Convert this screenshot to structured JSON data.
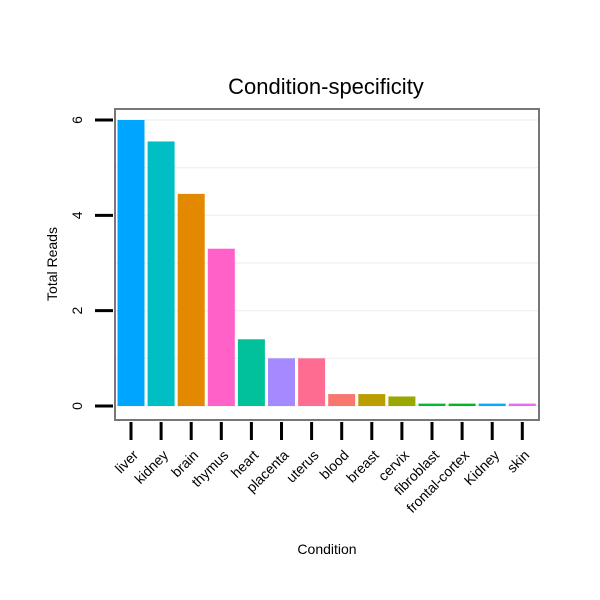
{
  "chart_data": {
    "type": "bar",
    "title": "Condition-specificity",
    "xlabel": "Condition",
    "ylabel": "Total Reads",
    "ylim": [
      0,
      6.2
    ],
    "yticks": [
      0,
      2,
      4,
      6
    ],
    "grid": true,
    "categories": [
      "liver",
      "kidney",
      "brain",
      "thymus",
      "heart",
      "placenta",
      "uterus",
      "blood",
      "breast",
      "cervix",
      "fibroblast",
      "frontal-cortex",
      "Kidney",
      "skin"
    ],
    "values": [
      6.0,
      5.55,
      4.45,
      3.3,
      1.4,
      1.0,
      1.0,
      0.25,
      0.25,
      0.2,
      0.05,
      0.05,
      0.05,
      0.05
    ],
    "colors": [
      "#00A5FF",
      "#00BFC4",
      "#E38900",
      "#FF61C9",
      "#00C19A",
      "#A58AFF",
      "#FF6C91",
      "#F8766D",
      "#BB9D00",
      "#99A800",
      "#00BA38",
      "#00B81F",
      "#00ACFC",
      "#E76BF3"
    ]
  }
}
